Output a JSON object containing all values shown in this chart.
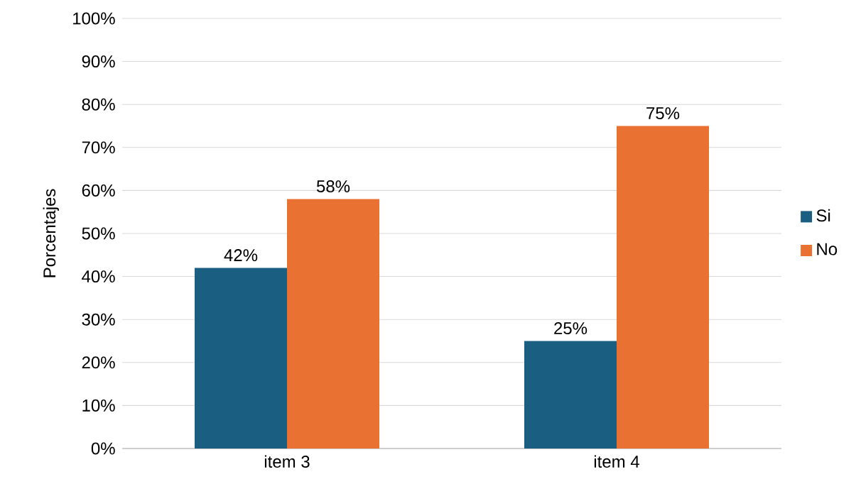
{
  "chart_data": {
    "type": "bar",
    "ylabel": "Porcentajes",
    "categories": [
      "item 3",
      "item 4"
    ],
    "series": [
      {
        "name": "Si",
        "color": "#1a5e82",
        "values": [
          42,
          25
        ],
        "value_labels": [
          "42%",
          "25%"
        ]
      },
      {
        "name": "No",
        "color": "#e97132",
        "values": [
          58,
          75
        ],
        "value_labels": [
          "58%",
          "75%"
        ]
      }
    ],
    "ylim": [
      0,
      100
    ],
    "yticks": [
      {
        "value": 0,
        "label": "0%"
      },
      {
        "value": 10,
        "label": "10%"
      },
      {
        "value": 20,
        "label": "20%"
      },
      {
        "value": 30,
        "label": "30%"
      },
      {
        "value": 40,
        "label": "40%"
      },
      {
        "value": 50,
        "label": "50%"
      },
      {
        "value": 60,
        "label": "60%"
      },
      {
        "value": 70,
        "label": "70%"
      },
      {
        "value": 80,
        "label": "80%"
      },
      {
        "value": 90,
        "label": "90%"
      },
      {
        "value": 100,
        "label": "100%"
      }
    ],
    "grid": "y",
    "legend": "right"
  }
}
